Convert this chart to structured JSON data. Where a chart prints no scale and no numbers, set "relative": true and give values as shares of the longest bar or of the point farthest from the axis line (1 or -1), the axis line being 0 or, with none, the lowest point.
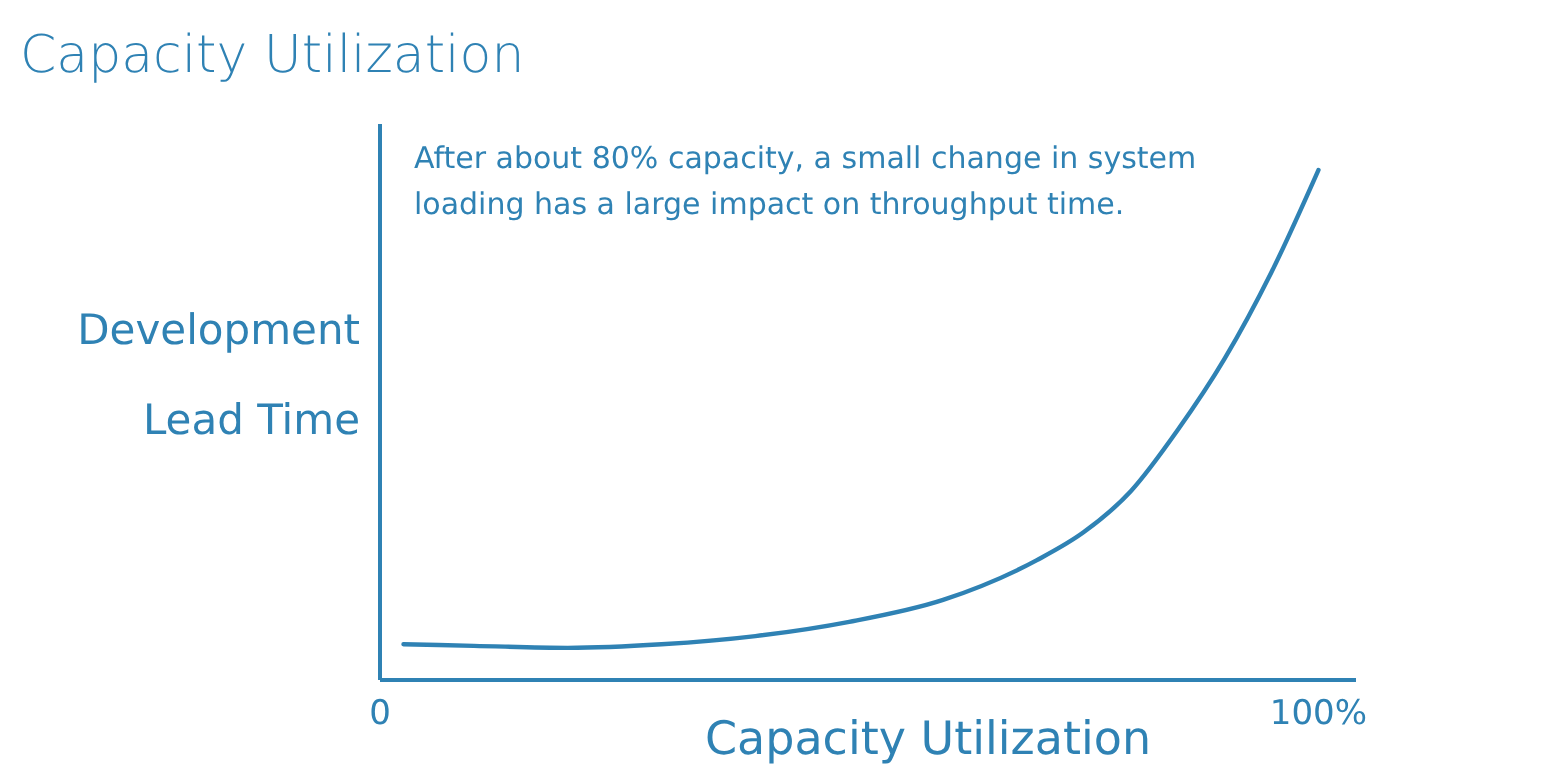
{
  "chart_data": {
    "type": "line",
    "title": "Capacity Utilization",
    "xlabel": "Capacity Utilization",
    "ylabel": "Development Lead Time",
    "annotations": [
      "After about 80% capacity, a small change in system loading has a large impact on throughput time."
    ],
    "relative": true,
    "xlim": [
      0,
      104
    ],
    "xticks": [
      {
        "value": 0,
        "label": "0"
      },
      {
        "value": 100,
        "label": "100%"
      }
    ],
    "grid": false,
    "marker": "none",
    "line_style": "solid",
    "series": [
      {
        "color": "#2f82b4",
        "x": [
          2.5,
          10,
          20,
          30,
          40,
          50,
          60,
          70,
          75,
          80,
          85,
          90,
          95,
          100
        ],
        "values": [
          0.07,
          0.067,
          0.063,
          0.07,
          0.086,
          0.114,
          0.157,
          0.235,
          0.29,
          0.37,
          0.49,
          0.63,
          0.8,
          1.0
        ]
      }
    ]
  }
}
